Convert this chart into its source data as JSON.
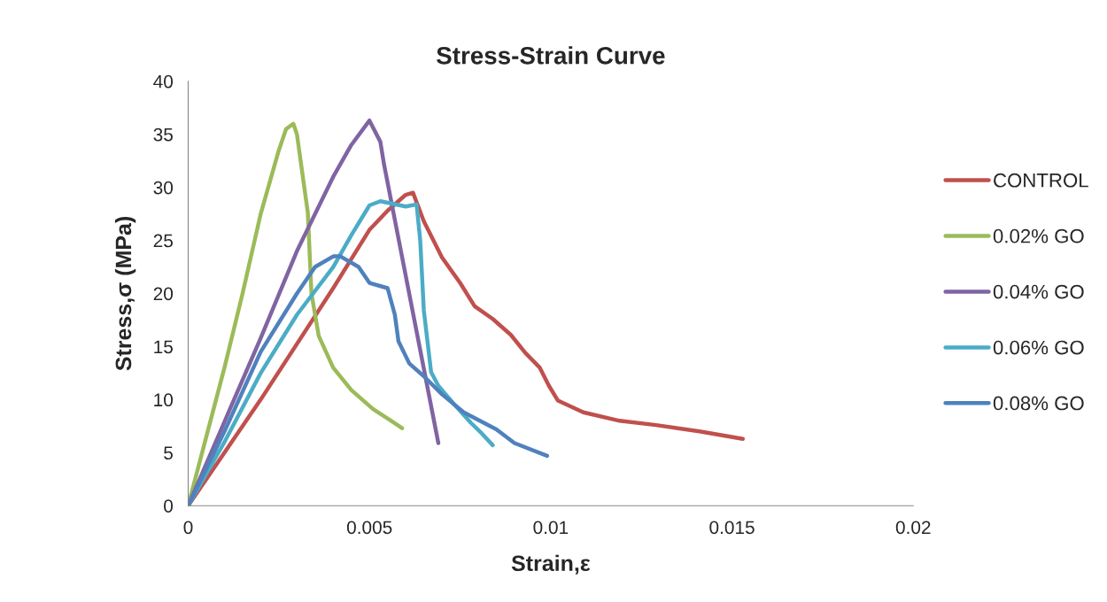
{
  "chart_data": {
    "type": "line",
    "title": "Stress-Strain Curve",
    "xlabel": "Strain,ε",
    "ylabel": "Stress,σ (MPa)",
    "xlim": [
      0,
      0.02
    ],
    "xticks": [
      {
        "value": 0,
        "label": "0"
      },
      {
        "value": 0.005,
        "label": "0.005"
      },
      {
        "value": 0.01,
        "label": "0.01"
      },
      {
        "value": 0.015,
        "label": "0.015"
      },
      {
        "value": 0.02,
        "label": "0.02"
      }
    ],
    "ylim": [
      0,
      40
    ],
    "yticks": [
      0,
      5,
      10,
      15,
      20,
      25,
      30,
      35,
      40
    ],
    "grid": false,
    "legend": "right",
    "marker": "none",
    "line_style": "solid",
    "series": [
      {
        "name": "CONTROL",
        "color": "#c0504d",
        "x": [
          0,
          0.002,
          0.004,
          0.005,
          0.0055,
          0.006,
          0.0062,
          0.0065,
          0.007,
          0.0075,
          0.0079,
          0.0084,
          0.0089,
          0.0093,
          0.0097,
          0.00995,
          0.0102,
          0.0109,
          0.0119,
          0.0129,
          0.0141,
          0.0153
        ],
        "values": [
          0,
          10,
          20.5,
          26,
          27.8,
          29.3,
          29.5,
          26.8,
          23.4,
          21,
          18.8,
          17.6,
          16.1,
          14.4,
          13,
          11.3,
          9.9,
          8.8,
          8,
          7.6,
          7,
          6.3
        ]
      },
      {
        "name": "0.02% GO",
        "color": "#9bbb59",
        "x": [
          0,
          0.001,
          0.0015,
          0.002,
          0.0025,
          0.0027,
          0.0029,
          0.003,
          0.0033,
          0.0034,
          0.0036,
          0.004,
          0.0045,
          0.0051,
          0.0056,
          0.0059
        ],
        "values": [
          0,
          13,
          20,
          27.5,
          33.5,
          35.5,
          36,
          35,
          27.6,
          20,
          16,
          13,
          10.9,
          9.1,
          8,
          7.3
        ]
      },
      {
        "name": "0.04% GO",
        "color": "#8064a2",
        "x": [
          0,
          0.002,
          0.003,
          0.004,
          0.0045,
          0.005,
          0.0053,
          0.0054,
          0.0069
        ],
        "values": [
          0,
          15.8,
          24,
          31,
          34,
          36.3,
          34.3,
          32.2,
          5.9
        ]
      },
      {
        "name": "0.06% GO",
        "color": "#4bacc6",
        "x": [
          0,
          0.001,
          0.002,
          0.003,
          0.004,
          0.0045,
          0.005,
          0.0053,
          0.006,
          0.0063,
          0.0064,
          0.0065,
          0.0067,
          0.0069,
          0.0073,
          0.0078,
          0.0081,
          0.0084
        ],
        "values": [
          0,
          6,
          12.5,
          18,
          22.5,
          25.5,
          28.3,
          28.7,
          28.2,
          28.4,
          25,
          18.4,
          12.6,
          11.3,
          9.7,
          7.8,
          6.8,
          5.7
        ]
      },
      {
        "name": "0.08% GO",
        "color": "#4f81bd",
        "x": [
          0,
          0.001,
          0.002,
          0.003,
          0.0035,
          0.004,
          0.0042,
          0.0047,
          0.005,
          0.0055,
          0.0057,
          0.0058,
          0.0061,
          0.0065,
          0.007,
          0.0076,
          0.0085,
          0.009,
          0.0099
        ],
        "values": [
          0,
          7,
          14.5,
          20,
          22.5,
          23.5,
          23.5,
          22.5,
          21,
          20.5,
          18,
          15.5,
          13.4,
          12.2,
          10.5,
          8.8,
          7.2,
          5.9,
          4.7
        ]
      }
    ]
  }
}
